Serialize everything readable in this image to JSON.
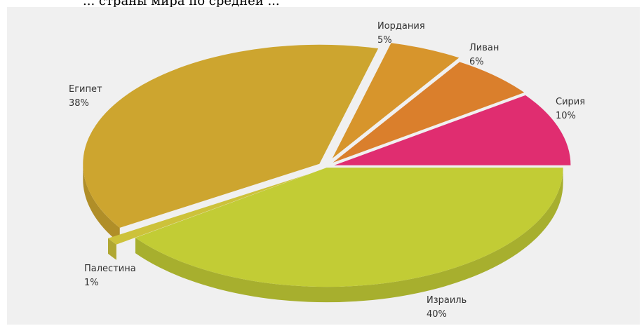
{
  "page_title": "... страны мира по средней ...",
  "chart_data": {
    "type": "pie",
    "title": "",
    "style": "3d-exploded",
    "slices": [
      {
        "label": "Израиль",
        "value": 40,
        "percent_label": "40%",
        "color": "#c2cc35"
      },
      {
        "label": "Палестина",
        "value": 1,
        "percent_label": "1%",
        "color": "#cdc23a"
      },
      {
        "label": "Египет",
        "value": 38,
        "percent_label": "38%",
        "color": "#cda52f"
      },
      {
        "label": "Иордания",
        "value": 5,
        "percent_label": "5%",
        "color": "#d7952c"
      },
      {
        "label": "Ливан",
        "value": 6,
        "percent_label": "6%",
        "color": "#da7f2c"
      },
      {
        "label": "Сирия",
        "value": 10,
        "percent_label": "10%",
        "color": "#e02d70"
      }
    ]
  }
}
